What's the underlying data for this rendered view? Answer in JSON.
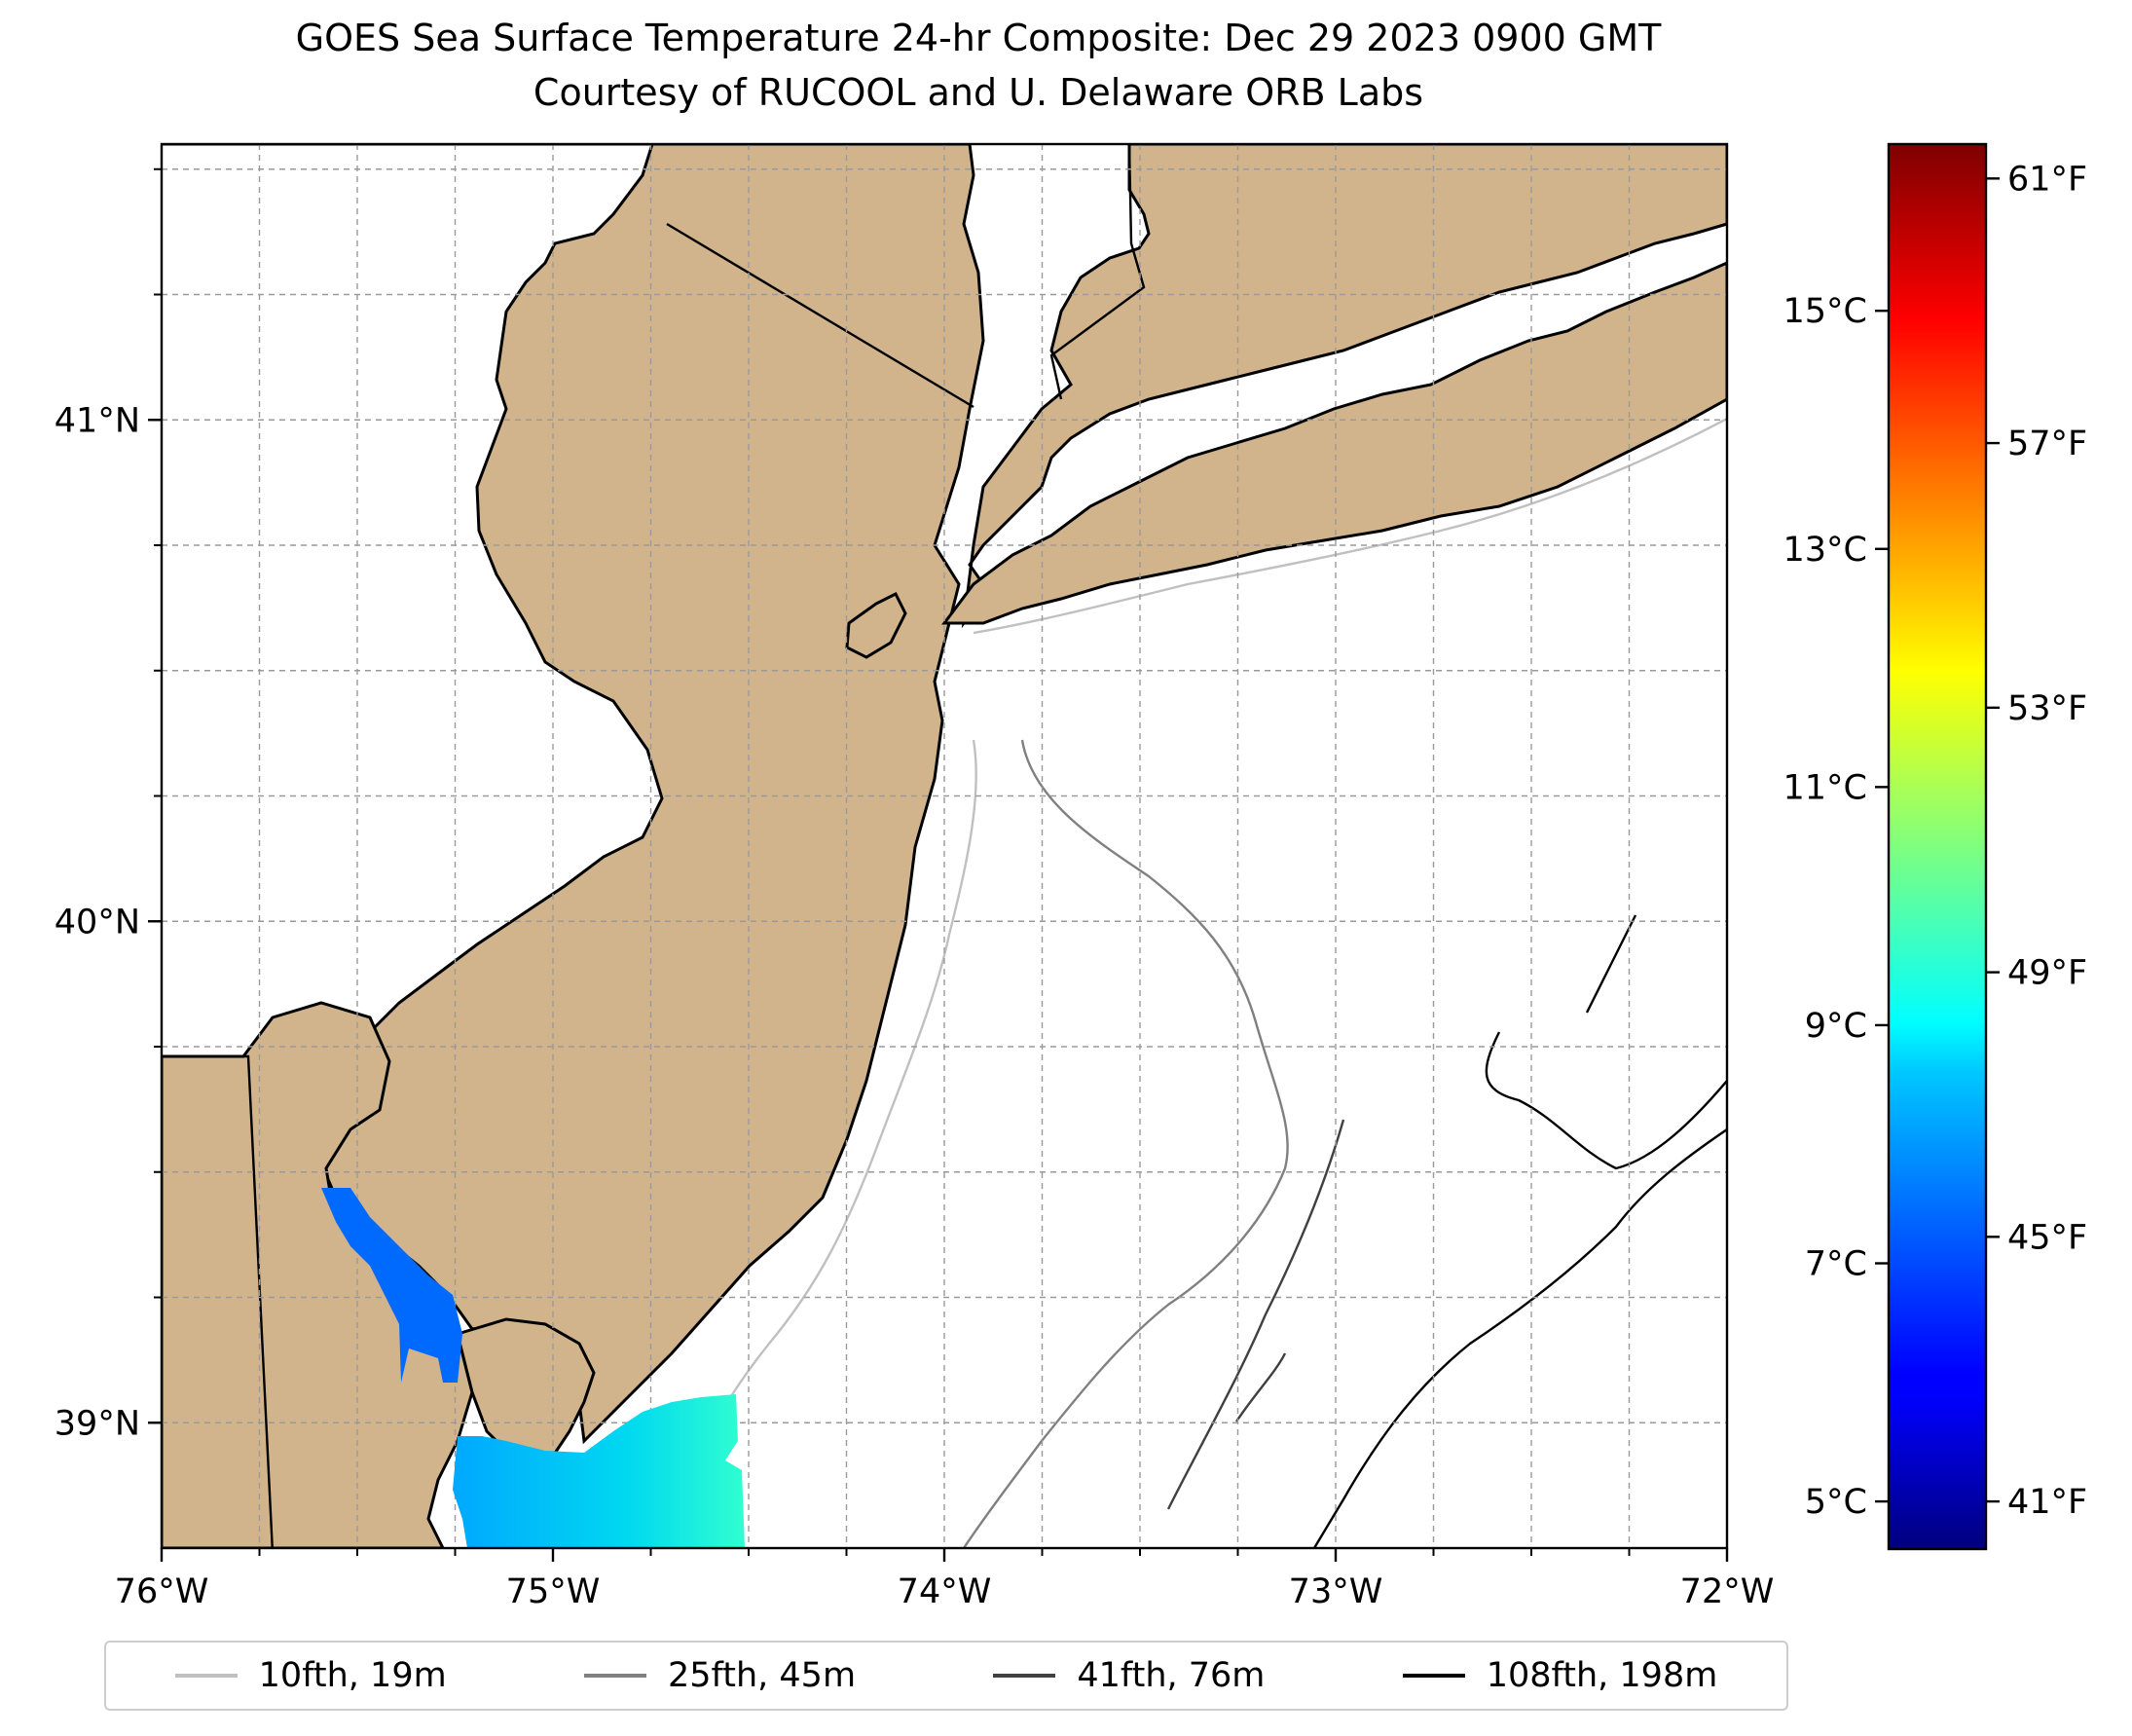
{
  "title": {
    "line1": "GOES Sea Surface Temperature 24-hr Composite: Dec 29 2023 0900 GMT",
    "line2": "Courtesy of RUCOOL and U. Delaware ORB Labs"
  },
  "map": {
    "lon_range": [
      -76.0,
      -72.0
    ],
    "lat_range": [
      38.75,
      41.55
    ],
    "x_ticks": [
      {
        "value": -76,
        "label": "76°W"
      },
      {
        "value": -75,
        "label": "75°W"
      },
      {
        "value": -74,
        "label": "74°W"
      },
      {
        "value": -73,
        "label": "73°W"
      },
      {
        "value": -72,
        "label": "72°W"
      }
    ],
    "y_ticks": [
      {
        "value": 39,
        "label": "39°N"
      },
      {
        "value": 40,
        "label": "40°N"
      },
      {
        "value": 41,
        "label": "41°N"
      }
    ],
    "gridlines": true,
    "land_color": "#d2b48c",
    "sst_observed": [
      {
        "region": "Delaware Bay",
        "temp_c": 7.3
      },
      {
        "region": "Cape May shelf",
        "temp_c": 8.5
      }
    ]
  },
  "colorbar": {
    "range_c": [
      4.6,
      16.4
    ],
    "celsius_ticks": [
      {
        "value": 5,
        "label": "5°C"
      },
      {
        "value": 7,
        "label": "7°C"
      },
      {
        "value": 9,
        "label": "9°C"
      },
      {
        "value": 11,
        "label": "11°C"
      },
      {
        "value": 13,
        "label": "13°C"
      },
      {
        "value": 15,
        "label": "15°C"
      }
    ],
    "fahrenheit_ticks": [
      {
        "value": 41,
        "label": "41°F"
      },
      {
        "value": 45,
        "label": "45°F"
      },
      {
        "value": 49,
        "label": "49°F"
      },
      {
        "value": 53,
        "label": "53°F"
      },
      {
        "value": 57,
        "label": "57°F"
      },
      {
        "value": 61,
        "label": "61°F"
      }
    ],
    "colormap": "jet"
  },
  "legend": {
    "items": [
      {
        "label": "10fth, 19m",
        "color": "#c0c0c0"
      },
      {
        "label": "25fth, 45m",
        "color": "#808080"
      },
      {
        "label": "41fth, 76m",
        "color": "#404040"
      },
      {
        "label": "108fth, 198m",
        "color": "#000000"
      }
    ]
  }
}
